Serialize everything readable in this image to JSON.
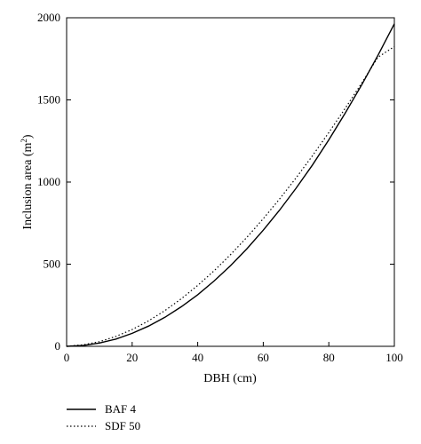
{
  "chart_data": {
    "type": "line",
    "title": "",
    "xlabel": "DBH (cm)",
    "ylabel": {
      "text": "Inclusion area (m",
      "superscript": "2",
      "suffix": ")"
    },
    "xlim": [
      0,
      100
    ],
    "ylim": [
      0,
      2000
    ],
    "x_ticks": [
      "0",
      "20",
      "40",
      "60",
      "80",
      "100"
    ],
    "y_ticks": [
      "0",
      "500",
      "1000",
      "1500",
      "2000"
    ],
    "grid": false,
    "legend_position": "bottom-left",
    "x": [
      0,
      5,
      10,
      15,
      20,
      25,
      30,
      35,
      40,
      45,
      50,
      55,
      60,
      65,
      70,
      75,
      80,
      85,
      90,
      95,
      100
    ],
    "series": [
      {
        "name": "BAF 4",
        "style": "solid",
        "color": "#000000",
        "values": [
          0,
          5,
          20,
          44,
          79,
          123,
          177,
          241,
          314,
          398,
          491,
          594,
          707,
          830,
          962,
          1104,
          1257,
          1419,
          1590,
          1772,
          1963
        ]
      },
      {
        "name": "SDF 50",
        "style": "dotted",
        "color": "#000000",
        "values": [
          0,
          9,
          28,
          60,
          102,
          155,
          218,
          290,
          371,
          460,
          558,
          664,
          777,
          898,
          1025,
          1160,
          1301,
          1448,
          1601,
          1760,
          1825
        ]
      }
    ]
  }
}
